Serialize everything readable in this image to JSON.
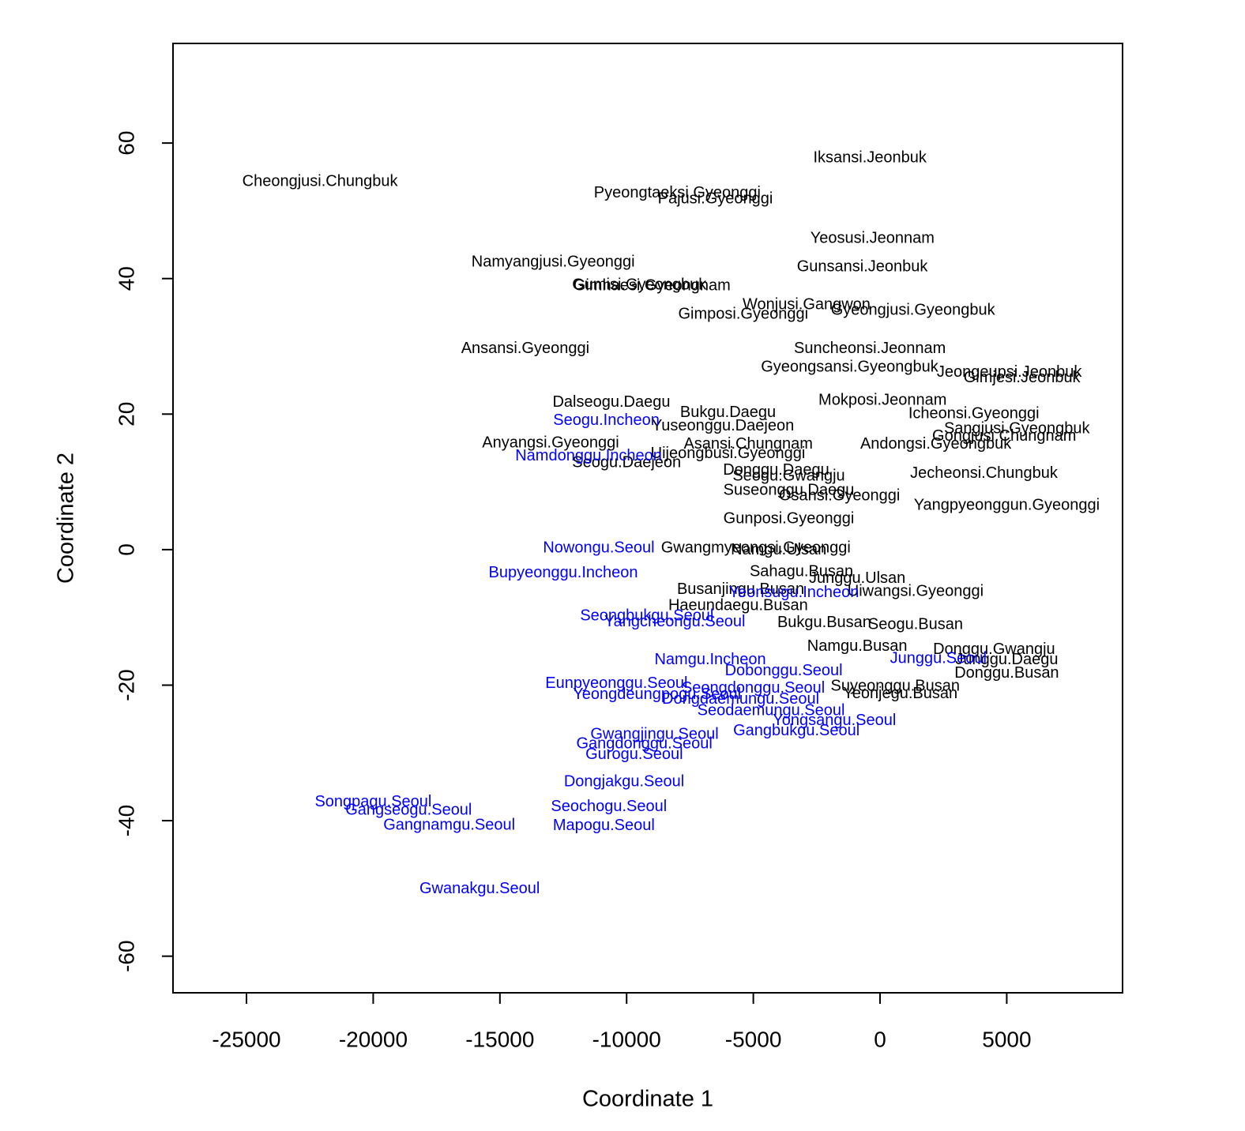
{
  "chart_data": {
    "type": "text-scatter",
    "xlabel": "Coordinate 1",
    "ylabel": "Coordinate 2",
    "xlim": [
      -27900,
      9570
    ],
    "ylim": [
      -65.4,
      74.7
    ],
    "xticks": [
      -25000,
      -20000,
      -15000,
      -10000,
      -5000,
      0,
      5000
    ],
    "yticks": [
      -60,
      -40,
      -20,
      0,
      20,
      40,
      60
    ],
    "grid": false,
    "labels": [
      "Cheongjusi.Chungbuk",
      "Iksansi.Jeonbuk",
      "Pyeongtaeksi.Gyeonggi",
      "Pajusi.Gyeonggi",
      "Yeosusi.Jeonnam",
      "Namyangjusi.Gyeonggi",
      "Gunsansi.Jeonbuk",
      "Gimhaesi.Gyeongnam",
      "Gumisi.Gyeongbuk",
      "Wonjusi.Gangwon",
      "Gimposi.Gyeonggi",
      "Gyeongjusi.Gyeongbuk",
      "Ansansi.Gyeonggi",
      "Suncheonsi.Jeonnam",
      "Gyeongsansi.Gyeongbuk",
      "Jeongeupsi.Jeonbuk",
      "Gimjesi.Jeonbuk",
      "Dalseogu.Daegu",
      "Mokposi.Jeonnam",
      "Bukgu.Daegu",
      "Icheonsi.Gyeonggi",
      "Yuseonggu.Daejeon",
      "Sangjusi.Gyeongbuk",
      "Gongjusi.Chungnam",
      "Anyangsi.Gyeonggi",
      "Asansi.Chungnam",
      "Andongsi.Gyeongbuk",
      "Uijeongbusi.Gyeonggi",
      "Seogu.Daejeon",
      "Donggu.Daegu",
      "Seogu.Gwangju",
      "Jecheonsi.Chungbuk",
      "Suseonggu.Daegu",
      "Osansi.Gyeonggi",
      "Yangpyeonggun.Gyeonggi",
      "Gunposi.Gyeonggi",
      "Gwangmyeongsi.Gyeonggi",
      "Namgu.Ulsan",
      "Sahagu.Busan",
      "Junggu.Ulsan",
      "Busanjingu.Busan",
      "Uiwangsi.Gyeonggi",
      "Haeundaegu.Busan",
      "Bukgu.Busan",
      "Seogu.Busan",
      "Namgu.Busan",
      "Donggu.Gwangju",
      "Junggu.Daegu",
      "Donggu.Busan",
      "Suyeonggu.Busan",
      "Yeonjegu.Busan",
      "Seogu.Incheon",
      "Namdonggu.Incheon",
      "Nowongu.Seoul",
      "Bupyeonggu.Incheon",
      "Yeonsugu.Incheon",
      "Seongbukgu.Seoul",
      "Yangcheongu.Seoul",
      "Namgu.Incheon",
      "Junggu.Seoul",
      "Dobonggu.Seoul",
      "Eunpyeonggu.Seoul",
      "Seongdonggu.Seoul",
      "Yeongdeungpogu.Seoul",
      "Dongdaemungu.Seoul",
      "Seodaemungu.Seoul",
      "Yongsangu.Seoul",
      "Gangbukgu.Seoul",
      "Gwangjingu.Seoul",
      "Gangdonggu.Seoul",
      "Gurogu.Seoul",
      "Dongjakgu.Seoul",
      "Songpagu.Seoul",
      "Gangseogu.Seoul",
      "Seochogu.Seoul",
      "Gangnamgu.Seoul",
      "Mapogu.Seoul",
      "Gwanakgu.Seoul"
    ],
    "x": [
      -22100,
      -400,
      -8000,
      -6500,
      -300,
      -12900,
      -700,
      -9000,
      -9500,
      -2900,
      -5400,
      1300,
      -14000,
      -400,
      -1200,
      5100,
      5600,
      -10600,
      100,
      -6000,
      3700,
      -6200,
      5400,
      4900,
      -13000,
      -5200,
      2200,
      -6000,
      -10000,
      -4100,
      -3600,
      4100,
      -3600,
      -1600,
      5000,
      -3600,
      -4900,
      -4000,
      -3100,
      -900,
      -5500,
      1400,
      -5600,
      -2200,
      1400,
      -900,
      4500,
      5000,
      5000,
      600,
      800,
      -10800,
      -11500,
      -11100,
      -12500,
      -3400,
      -9200,
      -8100,
      -6700,
      2300,
      -3800,
      -10400,
      -5000,
      -8800,
      -5500,
      -4300,
      -1800,
      -3300,
      -8900,
      -9300,
      -9700,
      -10100,
      -20000,
      -18600,
      -10700,
      -17000,
      -10900,
      -15800
    ],
    "y": [
      54.3,
      57.8,
      52.6,
      51.7,
      45.9,
      42.4,
      41.7,
      38.9,
      39.0,
      36.1,
      34.7,
      35.3,
      29.6,
      29.6,
      26.9,
      26.1,
      25.3,
      21.7,
      22.0,
      20.2,
      20.0,
      18.2,
      17.8,
      16.7,
      15.7,
      15.5,
      15.5,
      14.1,
      12.8,
      11.7,
      10.8,
      11.2,
      8.7,
      7.9,
      6.5,
      4.5,
      0.2,
      -0.1,
      -3.3,
      -4.3,
      -5.9,
      -6.2,
      -8.3,
      -10.8,
      -11.1,
      -14.3,
      -14.8,
      -16.3,
      -18.3,
      -20.2,
      -21.3,
      19.0,
      13.8,
      0.2,
      -3.5,
      -6.4,
      -9.8,
      -10.7,
      -16.3,
      -16.1,
      -17.9,
      -19.8,
      -20.5,
      -21.4,
      -22.1,
      -23.8,
      -25.3,
      -26.8,
      -27.3,
      -28.7,
      -30.3,
      -34.3,
      -37.3,
      -38.5,
      -38.0,
      -40.7,
      -40.8,
      -50.1
    ],
    "colors": [
      "#000000",
      "#000000",
      "#000000",
      "#000000",
      "#000000",
      "#000000",
      "#000000",
      "#000000",
      "#000000",
      "#000000",
      "#000000",
      "#000000",
      "#000000",
      "#000000",
      "#000000",
      "#000000",
      "#000000",
      "#000000",
      "#000000",
      "#000000",
      "#000000",
      "#000000",
      "#000000",
      "#000000",
      "#000000",
      "#000000",
      "#000000",
      "#000000",
      "#000000",
      "#000000",
      "#000000",
      "#000000",
      "#000000",
      "#000000",
      "#000000",
      "#000000",
      "#000000",
      "#000000",
      "#000000",
      "#000000",
      "#000000",
      "#000000",
      "#000000",
      "#000000",
      "#000000",
      "#000000",
      "#000000",
      "#000000",
      "#000000",
      "#000000",
      "#000000",
      "#0000ff",
      "#0000ff",
      "#0000ff",
      "#0000ff",
      "#0000ff",
      "#0000ff",
      "#0000ff",
      "#0000ff",
      "#0000ff",
      "#0000ff",
      "#0000ff",
      "#0000ff",
      "#0000ff",
      "#0000ff",
      "#0000ff",
      "#0000ff",
      "#0000ff",
      "#0000ff",
      "#0000ff",
      "#0000ff",
      "#0000ff",
      "#0000ff",
      "#0000ff",
      "#0000ff",
      "#0000ff",
      "#0000ff",
      "#0000ff"
    ]
  }
}
